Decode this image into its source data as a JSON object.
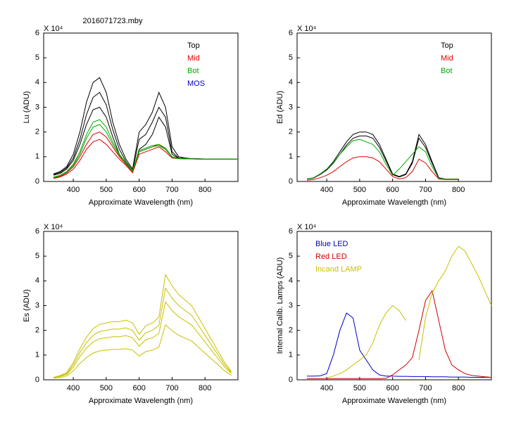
{
  "chart_data": [
    {
      "type": "line",
      "title": "2016071723.mby",
      "multiplier": "X 10⁴",
      "ylabel": "Lu (ADU)",
      "xlabel": "Approximate Wavelength (nm)",
      "xlim": [
        310,
        900
      ],
      "xticks": [
        400,
        500,
        600,
        700,
        800
      ],
      "ylim": [
        0,
        60000
      ],
      "yticks": [
        0,
        {
          "value": 10000,
          "label": "1"
        },
        {
          "value": 20000,
          "label": "2"
        },
        {
          "value": 30000,
          "label": "3"
        },
        {
          "value": 40000,
          "label": "4"
        },
        {
          "value": 50000,
          "label": "5"
        },
        {
          "value": 60000,
          "label": "6"
        }
      ],
      "legend": "upper right",
      "x": [
        340,
        360,
        380,
        400,
        420,
        440,
        460,
        480,
        500,
        520,
        540,
        560,
        580,
        600,
        620,
        640,
        660,
        680,
        700,
        720,
        740,
        760,
        780,
        800,
        820,
        840,
        860,
        880,
        900
      ],
      "series": [
        {
          "name": "Top",
          "color": "#000000",
          "values": [
            3000,
            4000,
            6000,
            11000,
            20000,
            32000,
            40000,
            42000,
            36000,
            24000,
            15000,
            9000,
            5000,
            20000,
            23000,
            28000,
            36000,
            30000,
            14000,
            10000,
            9500,
            9200,
            9200,
            9100,
            9100,
            9000,
            9000,
            9000,
            9000
          ]
        },
        {
          "color": "#000000",
          "values": [
            2800,
            3600,
            5500,
            9500,
            17000,
            27000,
            34000,
            36000,
            31000,
            21000,
            13000,
            8000,
            4500,
            17000,
            19000,
            24000,
            30000,
            26000,
            12000,
            9500,
            9300,
            9200,
            9100,
            9100,
            9000,
            9000,
            9000,
            9000,
            9000
          ]
        },
        {
          "color": "#000000",
          "values": [
            2500,
            3200,
            5000,
            8500,
            15000,
            23000,
            29000,
            30000,
            26000,
            18000,
            11000,
            7000,
            4000,
            13000,
            15000,
            19000,
            26000,
            22000,
            11000,
            9300,
            9200,
            9100,
            9100,
            9000,
            9000,
            9000,
            9000,
            9000,
            9000
          ]
        },
        {
          "name": "Mid",
          "color": "#dd0000",
          "values": [
            1500,
            2000,
            3500,
            6000,
            10000,
            15000,
            19000,
            20000,
            18000,
            14000,
            10000,
            7000,
            4000,
            12000,
            13000,
            14000,
            15000,
            13000,
            10000,
            9300,
            9200,
            9100,
            9100,
            9000,
            9000,
            9000,
            9000,
            9000,
            9000
          ]
        },
        {
          "color": "#dd0000",
          "values": [
            1200,
            1800,
            3000,
            5000,
            8500,
            13000,
            16000,
            17000,
            15000,
            12000,
            9000,
            6500,
            3500,
            11000,
            12000,
            13000,
            14000,
            12000,
            9500,
            9200,
            9100,
            9100,
            9000,
            9000,
            9000,
            9000,
            9000,
            9000,
            9000
          ]
        },
        {
          "name": "Bot",
          "color": "#00aa00",
          "values": [
            1800,
            2500,
            4000,
            7000,
            12000,
            19000,
            24000,
            25000,
            22000,
            16000,
            11000,
            7500,
            4500,
            12500,
            13500,
            14500,
            15000,
            13500,
            10000,
            9300,
            9200,
            9100,
            9100,
            9000,
            9000,
            9000,
            9000,
            9000,
            9000
          ]
        },
        {
          "color": "#00aa00",
          "values": [
            1600,
            2300,
            3800,
            6500,
            11000,
            17500,
            22000,
            23000,
            20000,
            15000,
            10500,
            7200,
            4200,
            12000,
            13000,
            14000,
            14500,
            13000,
            9800,
            9200,
            9100,
            9100,
            9000,
            9000,
            9000,
            9000,
            9000,
            9000,
            9000
          ]
        },
        {
          "name": "MOS",
          "color": "#0000cc",
          "values": [
            null,
            null,
            null,
            null,
            null,
            null,
            null,
            null,
            null,
            null,
            null,
            null,
            null,
            null,
            null,
            null,
            null,
            null,
            null,
            null,
            null,
            null,
            null,
            null,
            null,
            null,
            null,
            null,
            null
          ]
        }
      ]
    },
    {
      "type": "line",
      "multiplier": "X 10⁴",
      "ylabel": "Ed  (ADU)",
      "xlabel": "Approximate Wavelength (nm)",
      "xlim": [
        310,
        900
      ],
      "xticks": [
        400,
        500,
        600,
        700,
        800
      ],
      "ylim": [
        0,
        60000
      ],
      "yticks": [
        0,
        {
          "value": 10000,
          "label": "1"
        },
        {
          "value": 20000,
          "label": "2"
        },
        {
          "value": 30000,
          "label": "3"
        },
        {
          "value": 40000,
          "label": "4"
        },
        {
          "value": 50000,
          "label": "5"
        },
        {
          "value": 60000,
          "label": "6"
        }
      ],
      "legend": "upper right",
      "x": [
        340,
        360,
        380,
        400,
        420,
        440,
        460,
        480,
        500,
        520,
        540,
        560,
        580,
        600,
        620,
        640,
        660,
        680,
        700,
        720,
        740,
        760,
        780,
        800,
        820,
        840,
        860,
        880,
        900
      ],
      "series": [
        {
          "name": "Top",
          "color": "#000000",
          "values": [
            1000,
            1500,
            3000,
            5000,
            8000,
            12000,
            16000,
            19000,
            20000,
            20000,
            19000,
            15000,
            9000,
            3000,
            2000,
            3000,
            8000,
            19000,
            15000,
            8000,
            1500,
            1000,
            1000,
            1000,
            null,
            null,
            null,
            null,
            null
          ]
        },
        {
          "color": "#000000",
          "values": [
            900,
            1400,
            2800,
            4600,
            7400,
            11000,
            14700,
            17500,
            18400,
            18400,
            17500,
            13800,
            8300,
            2800,
            1800,
            2800,
            7400,
            17500,
            13800,
            7400,
            1400,
            900,
            900,
            900,
            null,
            null,
            null,
            null,
            null
          ]
        },
        {
          "name": "Mid",
          "color": "#dd0000",
          "values": [
            500,
            800,
            1500,
            2500,
            4000,
            6000,
            8000,
            9500,
            10000,
            10000,
            9500,
            8000,
            5000,
            2000,
            1000,
            1500,
            4000,
            9000,
            7500,
            4000,
            1000,
            800,
            800,
            800,
            null,
            null,
            null,
            null,
            null
          ]
        },
        {
          "name": "Bot",
          "color": "#00aa00",
          "values": [
            1000,
            1500,
            3000,
            5000,
            7500,
            11000,
            14000,
            16500,
            17000,
            16000,
            15000,
            12000,
            7000,
            2500,
            5000,
            8000,
            11000,
            14000,
            12000,
            6000,
            1200,
            900,
            900,
            900,
            null,
            null,
            null,
            null,
            null
          ]
        }
      ]
    },
    {
      "type": "line",
      "multiplier": "X 10⁴",
      "ylabel": "Es (ADU)",
      "xlabel": "Approximate Wavelength (nm)",
      "xlim": [
        310,
        900
      ],
      "xticks": [
        400,
        500,
        600,
        700,
        800
      ],
      "ylim": [
        0,
        60000
      ],
      "yticks": [
        0,
        {
          "value": 10000,
          "label": "1"
        },
        {
          "value": 20000,
          "label": "2"
        },
        {
          "value": 30000,
          "label": "3"
        },
        {
          "value": 40000,
          "label": "4"
        },
        {
          "value": 50000,
          "label": "5"
        },
        {
          "value": 60000,
          "label": "6"
        }
      ],
      "x": [
        340,
        360,
        380,
        400,
        420,
        440,
        460,
        480,
        500,
        520,
        540,
        560,
        580,
        600,
        620,
        640,
        660,
        680,
        700,
        720,
        740,
        760,
        780,
        800,
        820,
        840,
        860,
        880,
        900
      ],
      "series": [
        {
          "color": "#c8c000",
          "values": [
            1000,
            1700,
            2900,
            6900,
            12600,
            17200,
            20700,
            22400,
            23000,
            23500,
            23500,
            24100,
            23000,
            18400,
            21800,
            23000,
            25300,
            42500,
            38000,
            34500,
            32200,
            29900,
            25300,
            20700,
            16100,
            11500,
            6900,
            3400,
            null
          ]
        },
        {
          "color": "#c8c000",
          "values": [
            1000,
            1500,
            2500,
            6000,
            11000,
            15000,
            18000,
            19500,
            20000,
            20500,
            20500,
            21000,
            20000,
            16000,
            19000,
            20000,
            22000,
            37000,
            33000,
            30000,
            28000,
            26000,
            22000,
            18000,
            14000,
            10000,
            6000,
            3000,
            null
          ]
        },
        {
          "color": "#c8c000",
          "values": [
            900,
            1300,
            2100,
            5100,
            9400,
            12800,
            15300,
            16600,
            17000,
            17400,
            17400,
            17900,
            17000,
            13600,
            16200,
            17000,
            18700,
            31500,
            28000,
            25500,
            23800,
            22100,
            18700,
            15300,
            11900,
            8500,
            5100,
            2600,
            null
          ]
        },
        {
          "color": "#c8c000",
          "values": [
            700,
            900,
            1500,
            3600,
            6600,
            9000,
            10800,
            11700,
            12000,
            12300,
            12300,
            12600,
            12000,
            9600,
            11400,
            12000,
            13200,
            22200,
            19800,
            18000,
            16800,
            15600,
            13200,
            10800,
            8400,
            6000,
            3600,
            1800,
            null
          ]
        }
      ]
    },
    {
      "type": "line",
      "multiplier": "X 10⁴",
      "ylabel": "Internal Calib. Lamps (ADU)",
      "xlabel": "Approximate Wavelength (nm)",
      "xlim": [
        310,
        900
      ],
      "xticks": [
        400,
        500,
        600,
        700,
        800
      ],
      "ylim": [
        0,
        60000
      ],
      "yticks": [
        0,
        {
          "value": 10000,
          "label": "1"
        },
        {
          "value": 20000,
          "label": "2"
        },
        {
          "value": 30000,
          "label": "3"
        },
        {
          "value": 40000,
          "label": "4"
        },
        {
          "value": 50000,
          "label": "5"
        },
        {
          "value": 60000,
          "label": "6"
        }
      ],
      "legend": "upper left",
      "x": [
        340,
        360,
        380,
        400,
        420,
        440,
        460,
        480,
        500,
        520,
        540,
        560,
        580,
        600,
        620,
        640,
        660,
        680,
        700,
        720,
        740,
        760,
        780,
        800,
        820,
        840,
        860,
        880,
        900
      ],
      "series": [
        {
          "name": "Blue LED",
          "color": "#0000cc",
          "values": [
            1500,
            1500,
            1600,
            2500,
            10000,
            20000,
            27000,
            25000,
            12000,
            8000,
            4000,
            2000,
            1500,
            1500,
            1400,
            1400,
            1300,
            1300,
            1300,
            1200,
            1200,
            1200,
            1100,
            1100,
            1100,
            1000,
            1000,
            1000,
            1000
          ]
        },
        {
          "name": "Red LED",
          "color": "#cc0000",
          "values": [
            500,
            500,
            500,
            500,
            500,
            500,
            500,
            500,
            500,
            500,
            500,
            500,
            600,
            2000,
            4000,
            6000,
            9000,
            20000,
            32000,
            36000,
            24000,
            12000,
            6000,
            4000,
            2500,
            1800,
            1500,
            1200,
            1000
          ]
        },
        {
          "name": "Incand LAMP",
          "color": "#c8c000",
          "values": [
            null,
            null,
            null,
            800,
            1500,
            2500,
            4000,
            6000,
            8000,
            10000,
            15000,
            22000,
            27000,
            30000,
            28000,
            24000,
            null,
            8000,
            25000,
            35000,
            40000,
            44000,
            50000,
            54000,
            52000,
            47000,
            42000,
            36000,
            30000
          ]
        }
      ]
    }
  ]
}
